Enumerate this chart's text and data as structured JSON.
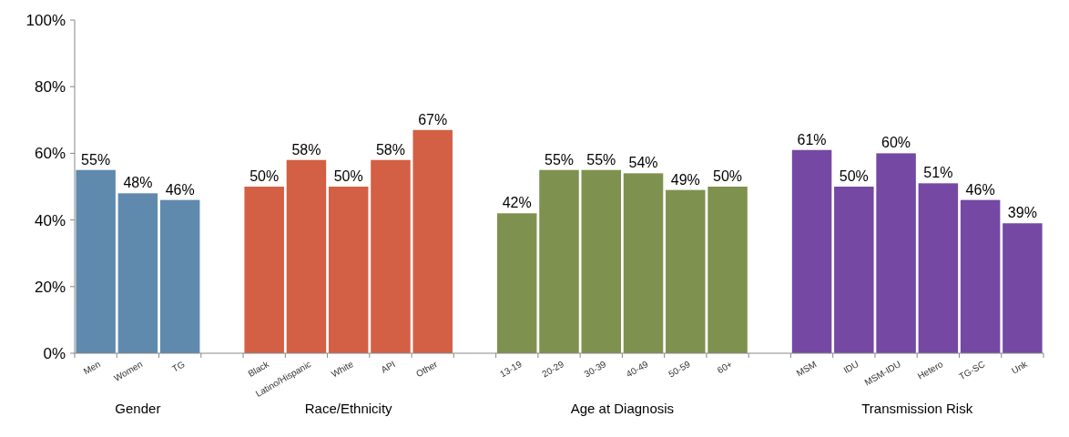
{
  "chart_data": {
    "type": "bar",
    "categories": [
      "Men",
      "Women",
      "TG",
      null,
      "Black",
      "Latino/Hispanic",
      "White",
      "API",
      "Other",
      null,
      "13-19",
      "20-29",
      "30-39",
      "40-49",
      "50-59",
      "60+",
      null,
      "MSM",
      "IDU",
      "MSM-IDU",
      "Hetero",
      "TG-SC",
      "Unk"
    ],
    "values": [
      55,
      48,
      46,
      null,
      50,
      58,
      50,
      58,
      67,
      null,
      42,
      55,
      55,
      54,
      49,
      50,
      null,
      61,
      50,
      60,
      51,
      46,
      39
    ],
    "colors": [
      "#5f8aad",
      "#5f8aad",
      "#5f8aad",
      null,
      "#d35f45",
      "#d35f45",
      "#d35f45",
      "#d35f45",
      "#d35f45",
      null,
      "#7f914f",
      "#7f914f",
      "#7f914f",
      "#7f914f",
      "#7f914f",
      "#7f914f",
      null,
      "#7548a3",
      "#7548a3",
      "#7548a3",
      "#7548a3",
      "#7548a3",
      "#7548a3"
    ],
    "value_labels": [
      "55%",
      "48%",
      "46%",
      null,
      "50%",
      "58%",
      "50%",
      "58%",
      "67%",
      null,
      "42%",
      "55%",
      "55%",
      "54%",
      "49%",
      "50%",
      null,
      "61%",
      "50%",
      "60%",
      "51%",
      "46%",
      "39%"
    ],
    "annotations": [
      "Gender",
      "Race/Ethnicity",
      "Age at Diagnosis",
      "Transmission Risk"
    ],
    "ylim": [
      0,
      100
    ],
    "yticks": [
      {
        "value": 0,
        "label": "0%"
      },
      {
        "value": 20,
        "label": "20%"
      },
      {
        "value": 40,
        "label": "40%"
      },
      {
        "value": 60,
        "label": "60%"
      },
      {
        "value": 80,
        "label": "80%"
      },
      {
        "value": 100,
        "label": "100%"
      }
    ],
    "grid": false
  }
}
